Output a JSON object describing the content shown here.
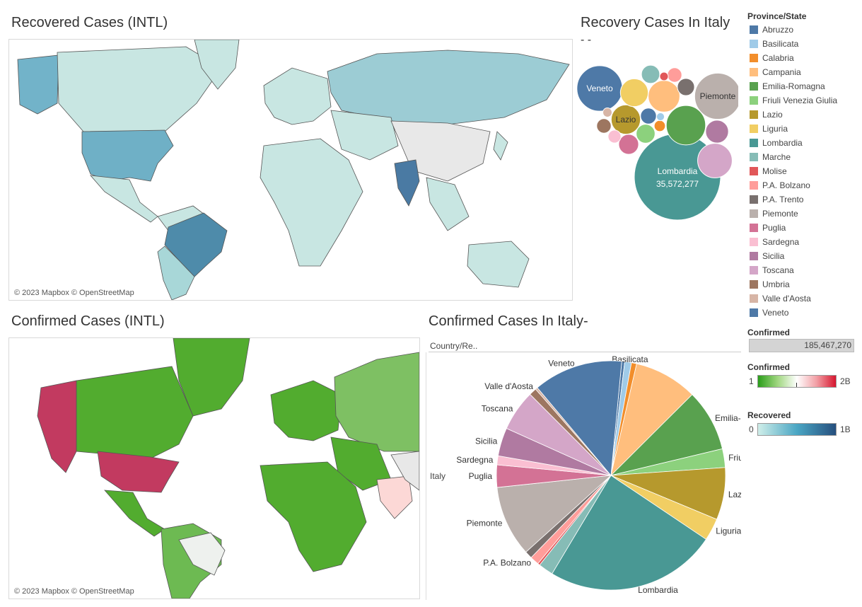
{
  "titles": {
    "recovered_intl": "Recovered Cases (INTL)",
    "recovery_italy": "Recovery Cases In Italy",
    "recovery_italy_sub": "- -",
    "confirmed_intl": "Confirmed Cases (INTL)",
    "confirmed_italy": "Confirmed Cases In Italy-"
  },
  "map_attribution": "© 2023 Mapbox © OpenStreetMap",
  "pie_header": "Country/Re..",
  "pie_row_label": "Italy",
  "legend": {
    "title": "Province/State",
    "items": [
      {
        "label": "Abruzzo",
        "color": "#4e79a7"
      },
      {
        "label": "Basilicata",
        "color": "#a0cbe8"
      },
      {
        "label": "Calabria",
        "color": "#f28e2b"
      },
      {
        "label": "Campania",
        "color": "#ffbe7d"
      },
      {
        "label": "Emilia-Romagna",
        "color": "#59a14f"
      },
      {
        "label": "Friuli Venezia Giulia",
        "color": "#8cd17d"
      },
      {
        "label": "Lazio",
        "color": "#b6992d"
      },
      {
        "label": "Liguria",
        "color": "#f1ce63"
      },
      {
        "label": "Lombardia",
        "color": "#499894"
      },
      {
        "label": "Marche",
        "color": "#86bcb6"
      },
      {
        "label": "Molise",
        "color": "#e15759"
      },
      {
        "label": "P.A. Bolzano",
        "color": "#ff9d9a"
      },
      {
        "label": "P.A. Trento",
        "color": "#79706e"
      },
      {
        "label": "Piemonte",
        "color": "#bab0ac"
      },
      {
        "label": "Puglia",
        "color": "#d37295"
      },
      {
        "label": "Sardegna",
        "color": "#fabfd2"
      },
      {
        "label": "Sicilia",
        "color": "#b07aa1"
      },
      {
        "label": "Toscana",
        "color": "#d4a6c8"
      },
      {
        "label": "Umbria",
        "color": "#9d7660"
      },
      {
        "label": "Valle d'Aosta",
        "color": "#d7b5a6"
      },
      {
        "label": "Veneto",
        "color": "#4e79a7"
      }
    ]
  },
  "confirmed_size_legend": {
    "title": "Confirmed",
    "value": "185,467,270"
  },
  "confirmed_color_legend": {
    "title": "Confirmed",
    "min": "1",
    "max": "2B"
  },
  "recovered_color_legend": {
    "title": "Recovered",
    "min": "0",
    "max": "1B"
  },
  "chart_data": [
    {
      "type": "bubble",
      "title": "Recovery Cases In Italy",
      "bubbles": [
        {
          "label": "Lombardia",
          "value": 35572277,
          "color": "#499894",
          "show": "Lombardia",
          "show_value": "35,572,277"
        },
        {
          "label": "Veneto",
          "value": 9900000,
          "color": "#4e79a7",
          "show": "Veneto"
        },
        {
          "label": "Piemonte",
          "value": 10200000,
          "color": "#bab0ac",
          "show": "Piemonte"
        },
        {
          "label": "Emilia-Romagna",
          "value": 7400000,
          "color": "#59a14f"
        },
        {
          "label": "Campania",
          "value": 4800000,
          "color": "#ffbe7d"
        },
        {
          "label": "Toscana",
          "value": 5700000,
          "color": "#d4a6c8"
        },
        {
          "label": "Lazio",
          "value": 4100000,
          "color": "#b6992d",
          "show": "Lazio"
        },
        {
          "label": "Liguria",
          "value": 3700000,
          "color": "#f1ce63"
        },
        {
          "label": "Sicilia",
          "value": 2500000,
          "color": "#b07aa1"
        },
        {
          "label": "Puglia",
          "value": 1900000,
          "color": "#d37295"
        },
        {
          "label": "Friuli Venezia Giulia",
          "value": 1700000,
          "color": "#8cd17d"
        },
        {
          "label": "Marche",
          "value": 1600000,
          "color": "#86bcb6"
        },
        {
          "label": "P.A. Trento",
          "value": 1400000,
          "color": "#79706e"
        },
        {
          "label": "Abruzzo",
          "value": 1200000,
          "color": "#4e79a7"
        },
        {
          "label": "P.A. Bolzano",
          "value": 1000000,
          "color": "#ff9d9a"
        },
        {
          "label": "Umbria",
          "value": 1000000,
          "color": "#9d7660"
        },
        {
          "label": "Sardegna",
          "value": 800000,
          "color": "#fabfd2"
        },
        {
          "label": "Calabria",
          "value": 600000,
          "color": "#f28e2b"
        },
        {
          "label": "Valle d'Aosta",
          "value": 400000,
          "color": "#d7b5a6"
        },
        {
          "label": "Molise",
          "value": 350000,
          "color": "#e15759"
        },
        {
          "label": "Basilicata",
          "value": 300000,
          "color": "#a0cbe8"
        }
      ]
    },
    {
      "type": "pie",
      "title": "Confirmed Cases In Italy-",
      "slices": [
        {
          "label": "Abruzzo",
          "value": 0.4,
          "color": "#4e79a7",
          "show": false
        },
        {
          "label": "Basilicata",
          "value": 0.9,
          "color": "#a0cbe8",
          "show": true
        },
        {
          "label": "Calabria",
          "value": 0.7,
          "color": "#f28e2b",
          "show": false
        },
        {
          "label": "Campania",
          "value": 8.5,
          "color": "#ffbe7d",
          "show": false
        },
        {
          "label": "Emilia-Romagna",
          "value": 8.3,
          "color": "#59a14f",
          "show": true
        },
        {
          "label": "Friuli Venezia Giulia",
          "value": 2.5,
          "color": "#8cd17d",
          "show": true
        },
        {
          "label": "Lazio",
          "value": 7.0,
          "color": "#b6992d",
          "show": true
        },
        {
          "label": "Liguria",
          "value": 3.0,
          "color": "#f1ce63",
          "show": true
        },
        {
          "label": "Lombardia",
          "value": 23.0,
          "color": "#499894",
          "show": true
        },
        {
          "label": "Marche",
          "value": 2.0,
          "color": "#86bcb6",
          "show": false
        },
        {
          "label": "Molise",
          "value": 0.3,
          "color": "#e15759",
          "show": false
        },
        {
          "label": "P.A. Bolzano",
          "value": 1.2,
          "color": "#ff9d9a",
          "show": true
        },
        {
          "label": "P.A. Trento",
          "value": 1.0,
          "color": "#79706e",
          "show": false
        },
        {
          "label": "Piemonte",
          "value": 9.5,
          "color": "#bab0ac",
          "show": true
        },
        {
          "label": "Puglia",
          "value": 3.0,
          "color": "#d37295",
          "show": true
        },
        {
          "label": "Sardegna",
          "value": 1.2,
          "color": "#fabfd2",
          "show": true
        },
        {
          "label": "Sicilia",
          "value": 3.8,
          "color": "#b07aa1",
          "show": true
        },
        {
          "label": "Toscana",
          "value": 5.5,
          "color": "#d4a6c8",
          "show": true
        },
        {
          "label": "Umbria",
          "value": 1.0,
          "color": "#9d7660",
          "show": false
        },
        {
          "label": "Valle d'Aosta",
          "value": 0.3,
          "color": "#d7b5a6",
          "show": true
        },
        {
          "label": "Veneto",
          "value": 12.0,
          "color": "#4e79a7",
          "show": true
        }
      ]
    }
  ]
}
